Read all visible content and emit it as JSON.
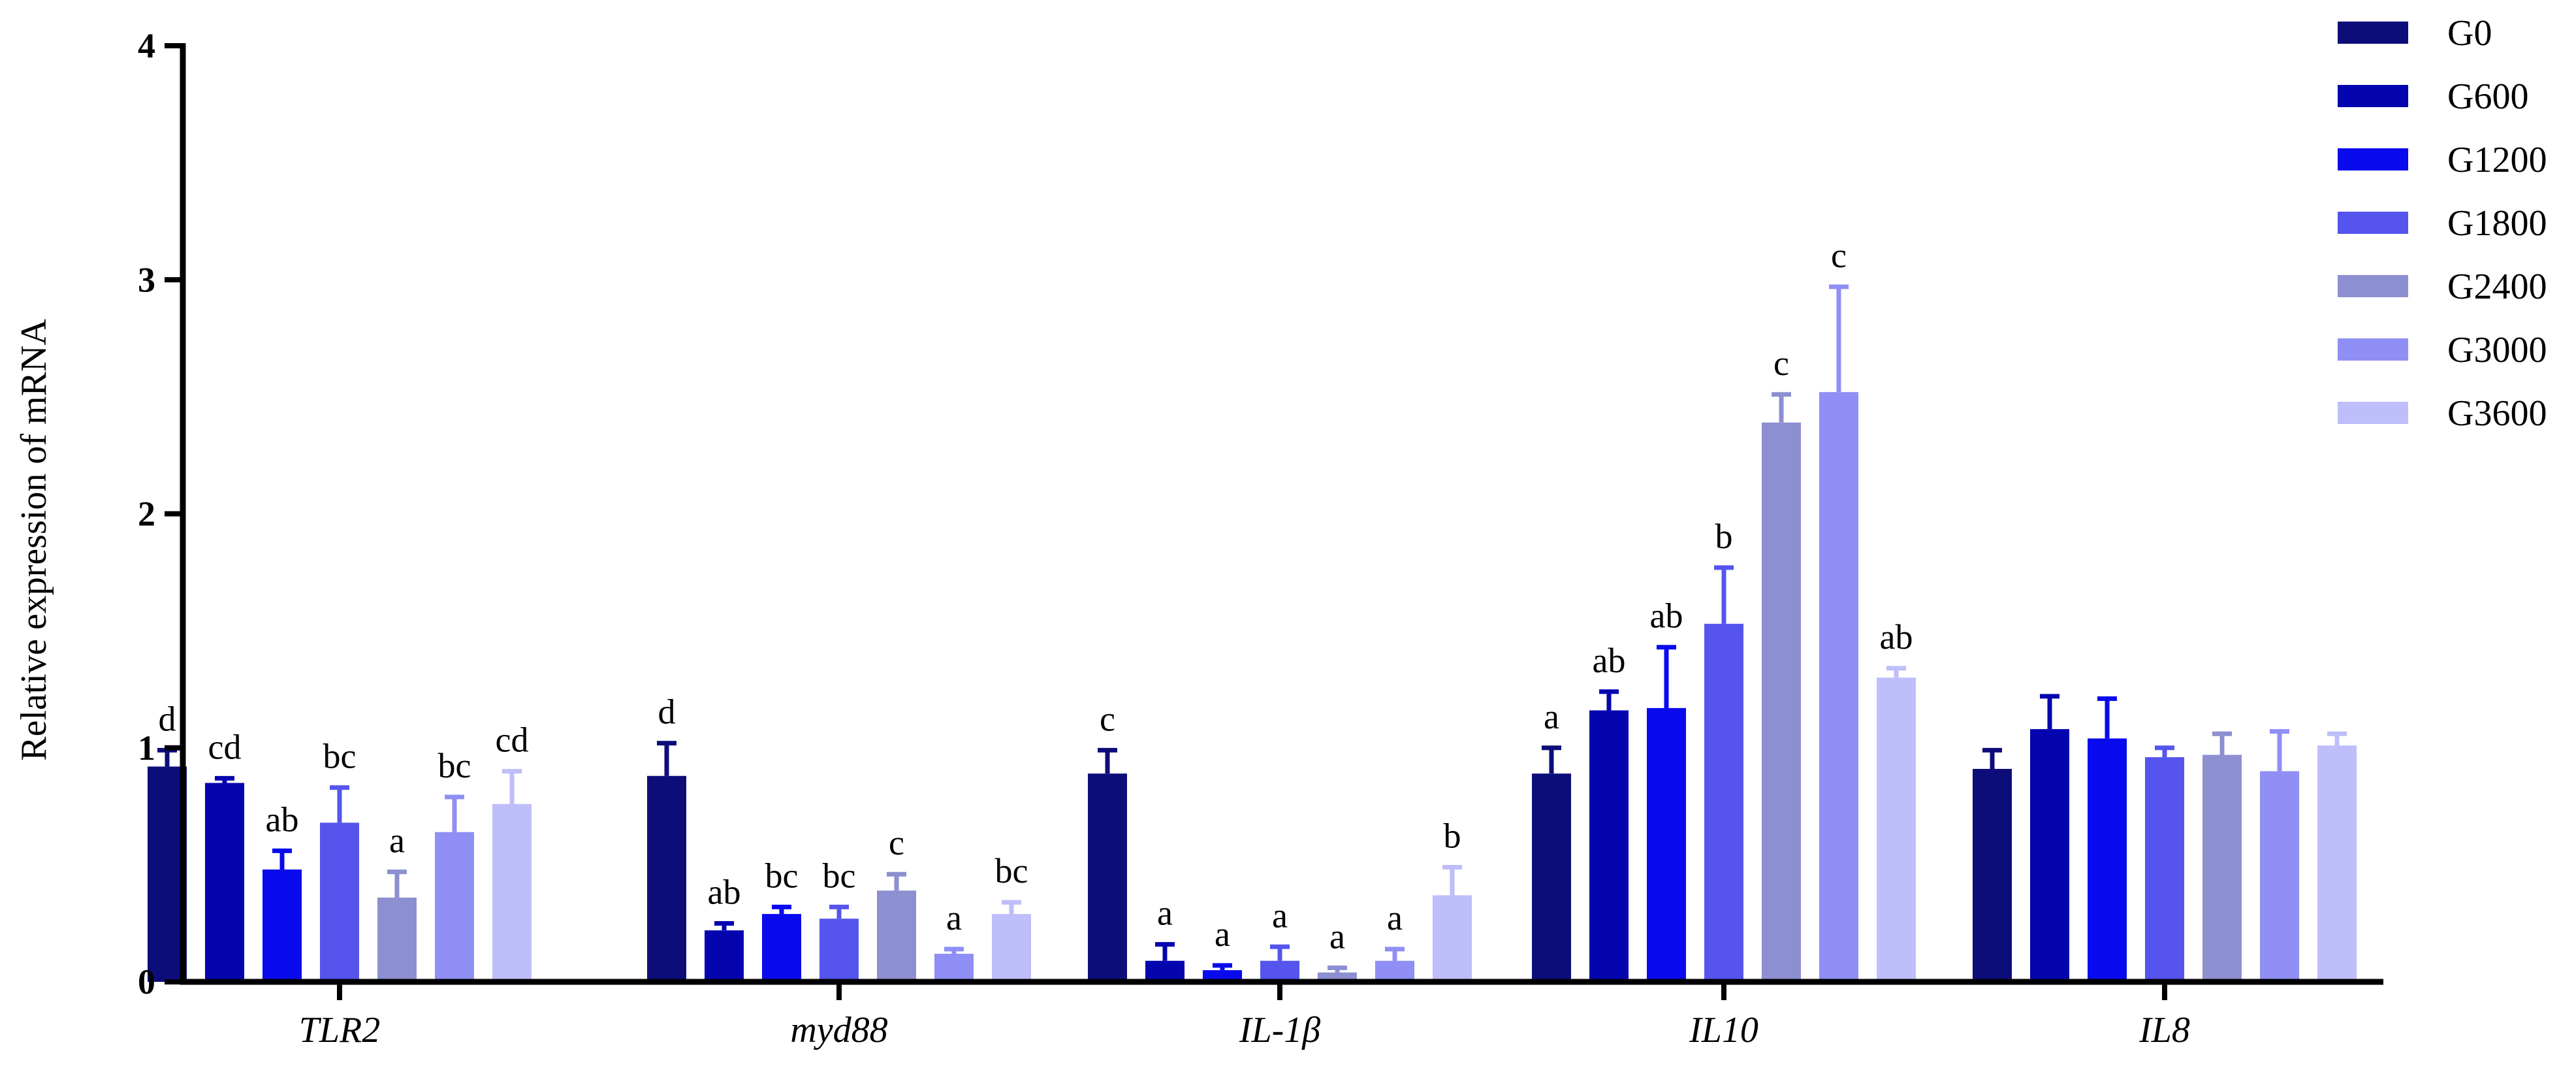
{
  "chart_data": {
    "type": "bar",
    "title": "",
    "xlabel": "",
    "ylabel": "Relative expression of mRNA",
    "ylim": [
      0,
      4
    ],
    "yticks": [
      "0",
      "1",
      "2",
      "3",
      "4"
    ],
    "categories": [
      "TLR2",
      "myd88",
      "IL-1β",
      "IL10",
      "IL8"
    ],
    "legend_position": "top-right",
    "series": [
      {
        "name": "G0",
        "color": "#0d0d7a",
        "values": [
          0.92,
          0.88,
          0.89,
          0.89,
          0.91
        ],
        "errors": [
          0.07,
          0.14,
          0.1,
          0.11,
          0.08
        ],
        "letters": [
          "d",
          "d",
          "c",
          "a",
          ""
        ]
      },
      {
        "name": "G600",
        "color": "#0505b0",
        "values": [
          0.85,
          0.22,
          0.09,
          1.16,
          1.08
        ],
        "errors": [
          0.02,
          0.03,
          0.07,
          0.08,
          0.14
        ],
        "letters": [
          "cd",
          "ab",
          "a",
          "ab",
          ""
        ]
      },
      {
        "name": "G1200",
        "color": "#0a0aee",
        "values": [
          0.48,
          0.29,
          0.05,
          1.17,
          1.04
        ],
        "errors": [
          0.08,
          0.03,
          0.02,
          0.26,
          0.17
        ],
        "letters": [
          "ab",
          "bc",
          "a",
          "ab",
          ""
        ]
      },
      {
        "name": "G1800",
        "color": "#5555ee",
        "values": [
          0.68,
          0.27,
          0.09,
          1.53,
          0.96
        ],
        "errors": [
          0.15,
          0.05,
          0.06,
          0.24,
          0.04
        ],
        "letters": [
          "bc",
          "bc",
          "a",
          "b",
          ""
        ]
      },
      {
        "name": "G2400",
        "color": "#8c8fd0",
        "values": [
          0.36,
          0.39,
          0.04,
          2.39,
          0.97
        ],
        "errors": [
          0.11,
          0.07,
          0.02,
          0.12,
          0.09
        ],
        "letters": [
          "a",
          "c",
          "a",
          "c",
          ""
        ]
      },
      {
        "name": "G3000",
        "color": "#8f8ff5",
        "values": [
          0.64,
          0.12,
          0.09,
          2.52,
          0.9
        ],
        "errors": [
          0.15,
          0.02,
          0.05,
          0.45,
          0.17
        ],
        "letters": [
          "bc",
          "a",
          "a",
          "c",
          ""
        ]
      },
      {
        "name": "G3600",
        "color": "#bebefa",
        "values": [
          0.76,
          0.29,
          0.37,
          1.3,
          1.01
        ],
        "errors": [
          0.14,
          0.05,
          0.12,
          0.04,
          0.05
        ],
        "letters": [
          "cd",
          "bc",
          "b",
          "ab",
          ""
        ]
      }
    ]
  }
}
